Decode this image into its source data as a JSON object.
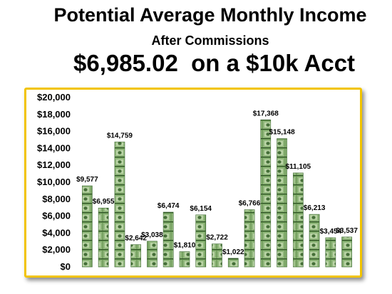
{
  "title": "Potential Average Monthly Income",
  "subtitle": "After Commissions",
  "headline": "$6,985.02  on a $10k Acct",
  "colors": {
    "frame": "#f2c400",
    "bill_green": "#6f9a58",
    "bill_dark": "#3f6a34"
  },
  "chart_data": {
    "type": "bar",
    "title": "Potential Average Monthly Income",
    "xlabel": "",
    "ylabel": "",
    "ylim": [
      0,
      20000
    ],
    "yticks": [
      "$0",
      "$2,000",
      "$4,000",
      "$6,000",
      "$8,000",
      "$10,000",
      "$12,000",
      "$14,000",
      "$16,000",
      "$18,000",
      "$20,000"
    ],
    "values": [
      9577,
      6955,
      14759,
      2642,
      3038,
      6474,
      1810,
      6154,
      2722,
      1022,
      6766,
      17368,
      15148,
      11105,
      6213,
      3454,
      3537
    ],
    "labels": [
      "$9,577",
      "$6,955",
      "$14,759",
      "$2,642",
      "$3,038",
      "$6,474",
      "$1,810",
      "$6,154",
      "$2,722",
      "$1,022",
      "$6,766",
      "$17,368",
      "$15,148",
      "$11,105",
      "$6,213",
      "$3,454",
      "$3,537"
    ],
    "grid": false,
    "bar_fill": "stacked-dollar-bills"
  }
}
